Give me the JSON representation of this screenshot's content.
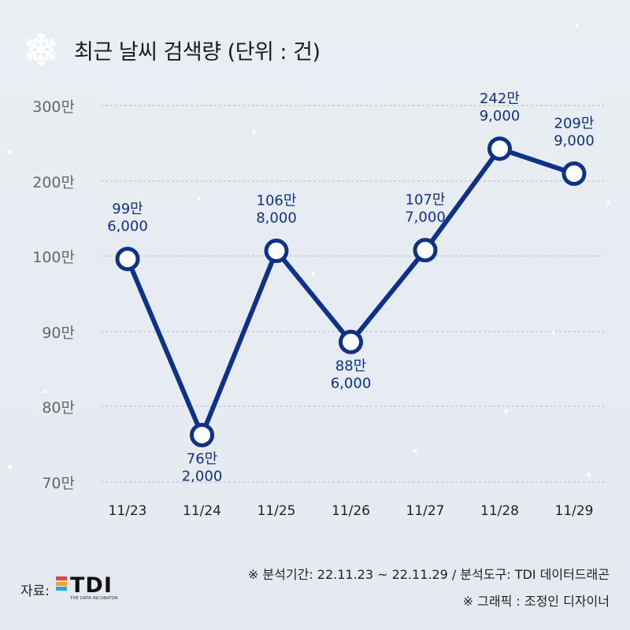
{
  "title": "최근 날씨 검색량 (단위 : 건)",
  "icon": "snowflake-icon",
  "colors": {
    "line": "#0f3187",
    "marker_fill": "#ffffff",
    "label_text": "#0f3187",
    "axis_text": "#666666",
    "grid": "#b8bcc2"
  },
  "chart_data": {
    "type": "line",
    "categories": [
      "11/23",
      "11/24",
      "11/25",
      "11/26",
      "11/27",
      "11/28",
      "11/29"
    ],
    "y_tick_labels": [
      "70만",
      "80만",
      "90만",
      "100만",
      "200만",
      "300만"
    ],
    "y_tick_values": [
      700000,
      800000,
      900000,
      1000000,
      2000000,
      3000000
    ],
    "y_scale": "non-linear (compressed upper range)",
    "values": [
      996000,
      762000,
      1068000,
      886000,
      1077000,
      2429000,
      2099000
    ],
    "point_labels": [
      [
        "99만",
        "6,000"
      ],
      [
        "76만",
        "2,000"
      ],
      [
        "106만",
        "8,000"
      ],
      [
        "88만",
        "6,000"
      ],
      [
        "107만",
        "7,000"
      ],
      [
        "242만",
        "9,000"
      ],
      [
        "209만",
        "9,000"
      ]
    ],
    "grid": true,
    "legend": "none"
  },
  "footer": {
    "source_label": "자료:",
    "logo_text": "TDI",
    "logo_sub": "THE DATA INCUBATOR",
    "logo_colors": [
      "#e8472c",
      "#f4a21c",
      "#2aa6df"
    ],
    "note1": "※ 분석기간: 22.11.23 ~ 22.11.29 / 분석도구: TDI 데이터드래곤",
    "note2": "※ 그래픽 : 조정인 디자이너"
  }
}
